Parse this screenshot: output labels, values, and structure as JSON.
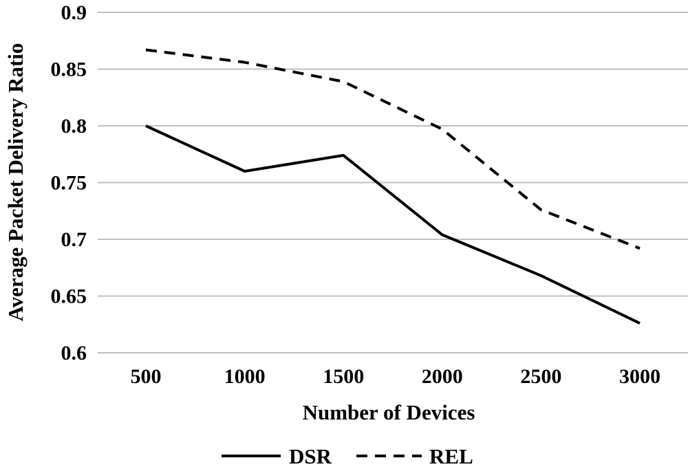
{
  "chart_data": {
    "type": "line",
    "title": "",
    "xlabel": "Number of Devices",
    "ylabel": "Average Packet Delivery Ratio",
    "categories": [
      "500",
      "1000",
      "1500",
      "2000",
      "2500",
      "3000"
    ],
    "ylim": [
      0.6,
      0.9
    ],
    "yticks": [
      "0.6",
      "0.65",
      "0.7",
      "0.75",
      "0.8",
      "0.85",
      "0.9"
    ],
    "grid": true,
    "legend_position": "bottom",
    "series": [
      {
        "name": "DSR",
        "style": "solid",
        "color": "#000000",
        "values": [
          0.8,
          0.76,
          0.774,
          0.704,
          0.668,
          0.626
        ]
      },
      {
        "name": "REL",
        "style": "dashed",
        "color": "#000000",
        "values": [
          0.867,
          0.856,
          0.839,
          0.797,
          0.726,
          0.692
        ]
      }
    ]
  }
}
